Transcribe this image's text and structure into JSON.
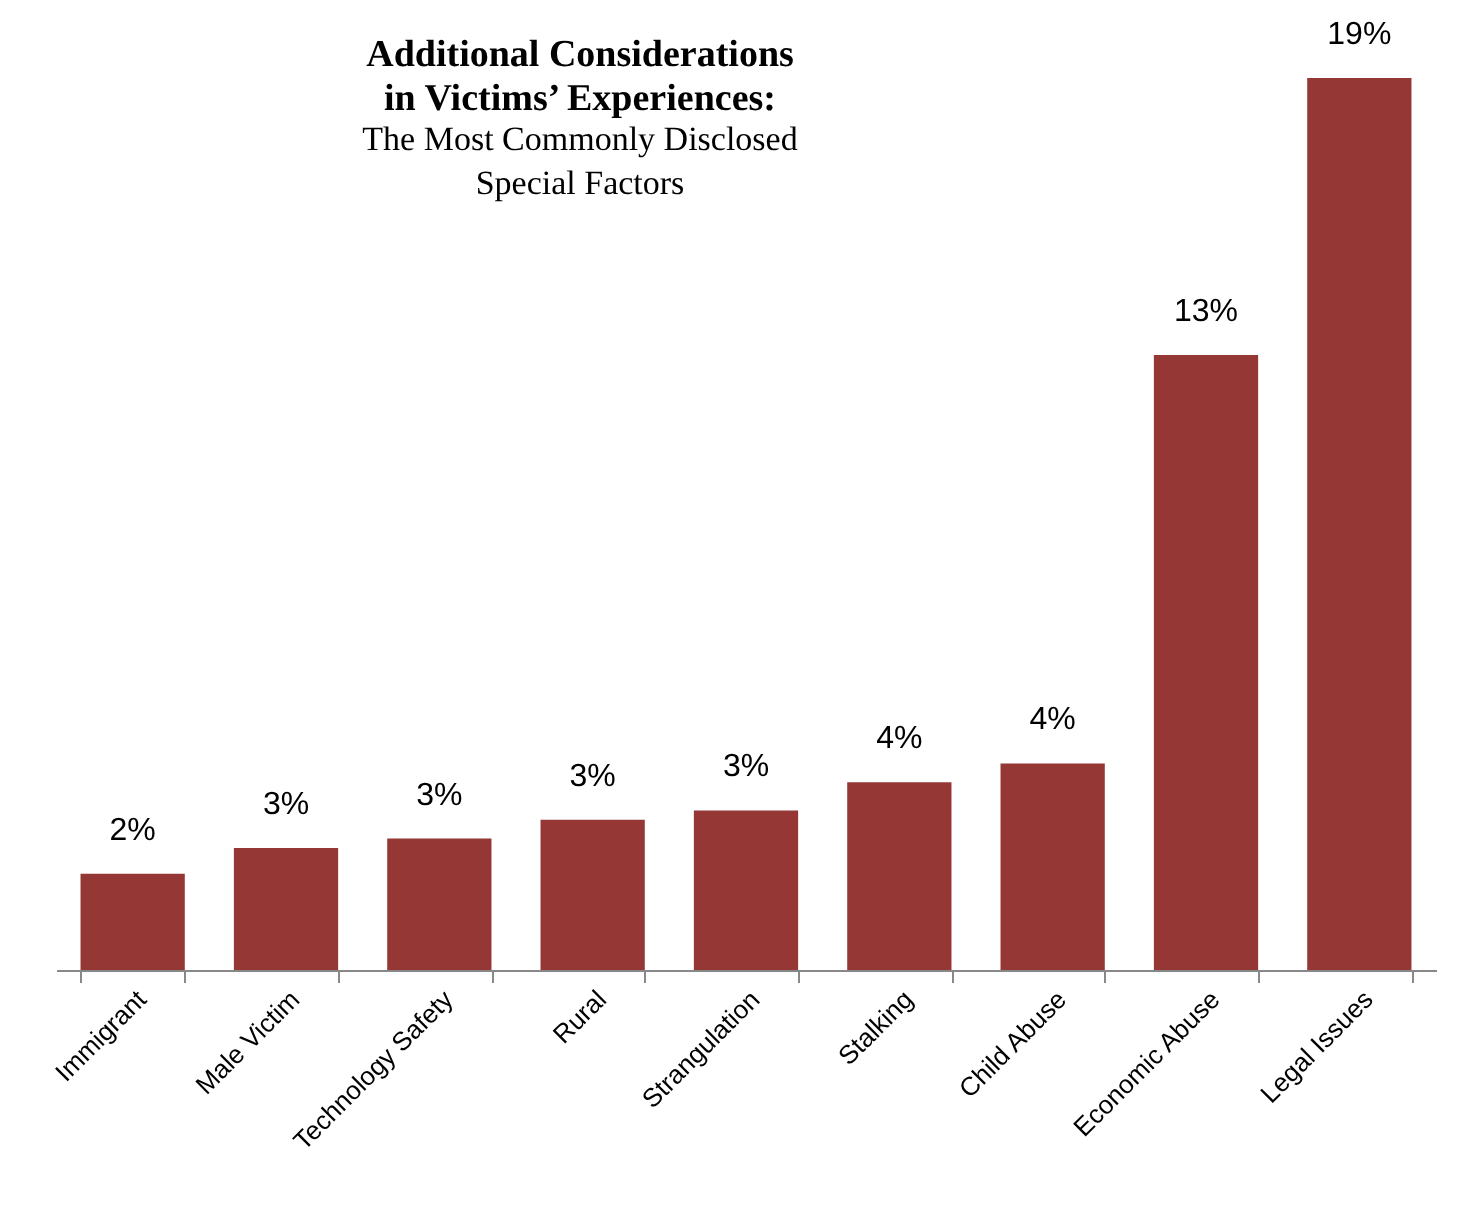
{
  "chart_data": {
    "type": "bar",
    "title": [
      "Additional Considerations",
      "in Victims’ Experiences:"
    ],
    "subtitle": [
      "The Most Commonly Disclosed",
      "Special Factors"
    ],
    "categories": [
      "Immigrant",
      "Male Victim",
      "Technology Safety",
      "Rural",
      "Strangulation",
      "Stalking",
      "Child Abuse",
      "Economic Abuse",
      "Legal Issues"
    ],
    "values": [
      2.05,
      2.6,
      2.8,
      3.2,
      3.4,
      4.0,
      4.4,
      13.1,
      19
    ],
    "value_labels": [
      "2%",
      "3%",
      "3%",
      "3%",
      "3%",
      "4%",
      "4%",
      "13%",
      "19%"
    ],
    "color": "#953735"
  }
}
